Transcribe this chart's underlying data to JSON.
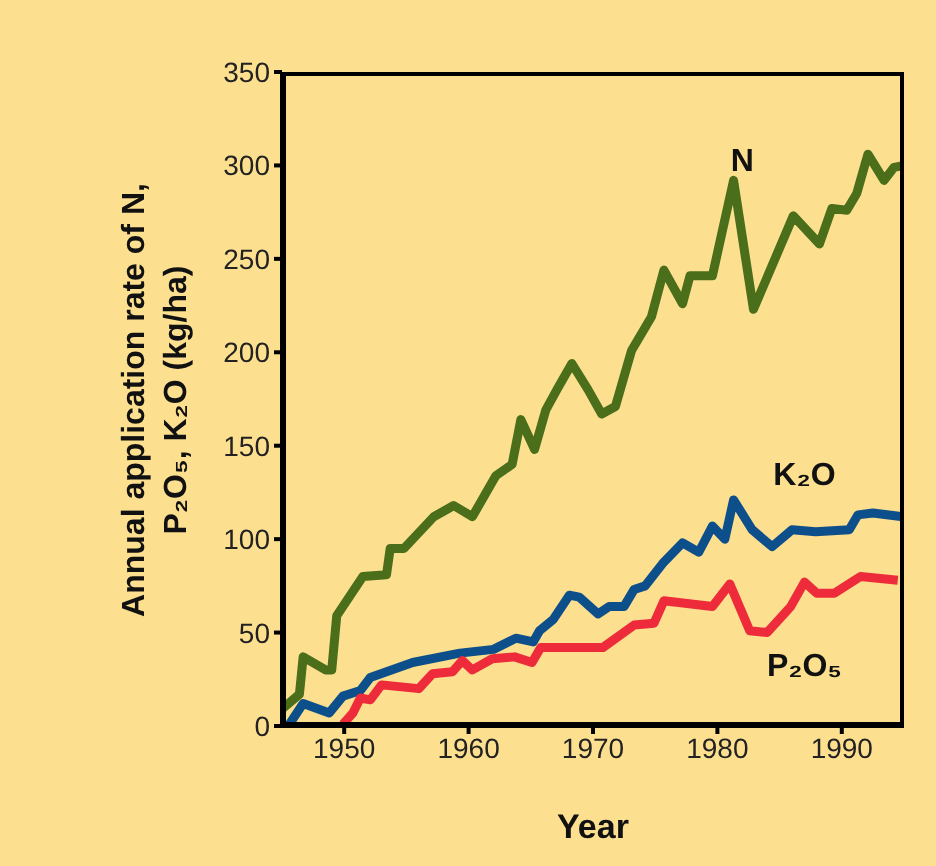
{
  "chart_data": {
    "type": "line",
    "xlabel": "Year",
    "ylabel": "Annual application rate of N, P₂O₅, K₂O (kg/ha)",
    "xlim": [
      1945,
      1995
    ],
    "xticks": [
      1950,
      1960,
      1970,
      1980,
      1990
    ],
    "ylim": [
      0,
      350
    ],
    "yticks": [
      0,
      50,
      100,
      150,
      200,
      250,
      300,
      350
    ],
    "grid": false,
    "legend": false,
    "marker": "none",
    "line_style": "solid",
    "series": [
      {
        "name": "N",
        "color": "#4a6e1a",
        "x": [
          1945,
          1946.4,
          1946.7,
          1948.5,
          1949,
          1949.4,
          1951.5,
          1953.4,
          1953.7,
          1954.8,
          1957.2,
          1958.8,
          1960.3,
          1962.2,
          1963.5,
          1964.2,
          1965.3,
          1966.2,
          1967.1,
          1968.3,
          1969.6,
          1970.7,
          1971.8,
          1973.1,
          1974.7,
          1975.7,
          1977.2,
          1977.8,
          1979.6,
          1981.3,
          1982.9,
          1986.1,
          1988.2,
          1989.2,
          1990.4,
          1991.2,
          1992.1,
          1993.4,
          1994.2,
          1995
        ],
        "values": [
          9,
          17,
          37,
          30,
          30,
          59,
          80,
          81,
          95,
          95,
          112,
          118,
          112,
          134,
          140,
          164,
          148,
          169,
          180,
          194,
          180,
          167,
          171,
          201,
          219,
          244,
          226,
          241,
          241,
          292,
          223,
          273,
          258,
          277,
          276,
          285,
          306,
          292,
          299,
          300
        ]
      },
      {
        "name": "K₂O",
        "color": "#0d4f8b",
        "x": [
          1945.5,
          1946.7,
          1948.8,
          1949.9,
          1951.3,
          1952.1,
          1955.5,
          1959.3,
          1962,
          1963.8,
          1965.2,
          1965.7,
          1966.8,
          1968.1,
          1968.9,
          1970.4,
          1971.3,
          1972.5,
          1973.3,
          1974.2,
          1975.6,
          1977.2,
          1978.5,
          1979.6,
          1980.6,
          1981.3,
          1982.8,
          1984.4,
          1986,
          1987.9,
          1990.6,
          1991.3,
          1992.5,
          1994.9
        ],
        "values": [
          0,
          12,
          7,
          16,
          19,
          26,
          34,
          39,
          41,
          47,
          45,
          51,
          57,
          70,
          69,
          60,
          64,
          64,
          73,
          75,
          87,
          98,
          93,
          107,
          100,
          121,
          105,
          96,
          105,
          104,
          105,
          113,
          114,
          112
        ]
      },
      {
        "name": "P₂O₅",
        "color": "#ee2b3b",
        "x": [
          1949.9,
          1950.7,
          1951.3,
          1952.1,
          1953,
          1956,
          1957.1,
          1958.7,
          1959.5,
          1960.3,
          1961.9,
          1963.7,
          1965.1,
          1965.8,
          1970.8,
          1973.3,
          1974.9,
          1975.7,
          1979.6,
          1981,
          1982.6,
          1984,
          1985.9,
          1987,
          1988,
          1989.4,
          1991.5,
          1994.5
        ],
        "values": [
          1,
          7,
          15,
          14,
          22,
          20,
          28,
          29,
          35,
          30,
          36,
          37,
          34,
          42,
          42,
          54,
          55,
          67,
          64,
          76,
          51,
          50,
          64,
          77,
          71,
          71,
          80,
          78
        ]
      }
    ]
  }
}
